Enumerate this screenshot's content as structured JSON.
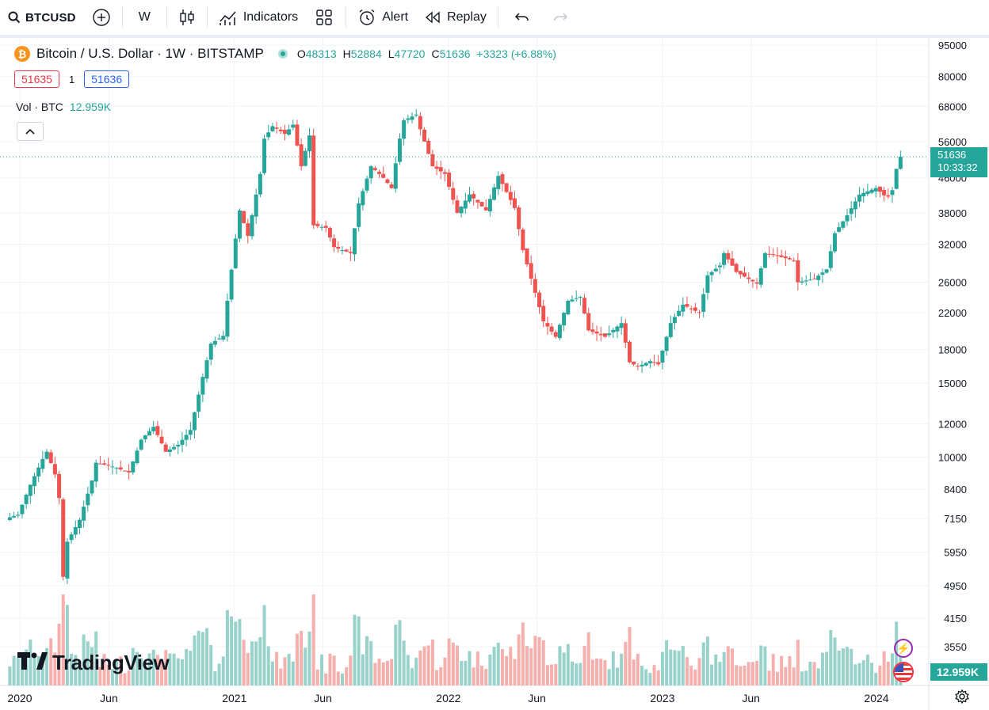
{
  "toolbar": {
    "symbol": "BTCUSD",
    "interval": "W",
    "indicators_label": "Indicators",
    "alert_label": "Alert",
    "replay_label": "Replay"
  },
  "legend": {
    "title": "Bitcoin / U.S. Dollar · 1W · BITSTAMP",
    "btc_symbol": "₿",
    "o_key": "O",
    "o_val": "48313",
    "h_key": "H",
    "h_val": "52884",
    "l_key": "L",
    "l_val": "47720",
    "c_key": "C",
    "c_val": "51636",
    "change": "+3323 (+6.88%)",
    "bid": "51635",
    "spread": "1",
    "ask": "51636",
    "vol_label": "Vol · BTC",
    "vol_value": "12.959K"
  },
  "price_tag": {
    "price": "51636",
    "countdown": "10:33:32"
  },
  "volume_tag": "12.959K",
  "brand": "TradingView",
  "colors": {
    "up": "#26a69a",
    "down": "#ef5350",
    "up_vol": "#99d2cb",
    "down_vol": "#f5b0ad",
    "grid": "#f0f3fa"
  },
  "chart_data": {
    "type": "candlestick",
    "scale": "log",
    "ylim": [
      3100,
      98000
    ],
    "y_ticks": [
      95000,
      80000,
      68000,
      56000,
      46000,
      38000,
      32000,
      26000,
      22000,
      18000,
      15000,
      12000,
      10000,
      8400,
      7150,
      5950,
      4950,
      4150,
      3550
    ],
    "x_ticks": [
      {
        "label": "2020",
        "date": "2020-01-01"
      },
      {
        "label": "Jun",
        "date": "2020-06-01"
      },
      {
        "label": "2021",
        "date": "2021-01-01"
      },
      {
        "label": "Jun",
        "date": "2021-06-01"
      },
      {
        "label": "2022",
        "date": "2022-01-01"
      },
      {
        "label": "Jun",
        "date": "2022-06-01"
      },
      {
        "label": "2023",
        "date": "2023-01-01"
      },
      {
        "label": "Jun",
        "date": "2023-06-01"
      },
      {
        "label": "2024",
        "date": "2024-01-01"
      }
    ],
    "last_price": 51636,
    "close_path": [
      [
        "2019-12-15",
        7200
      ],
      [
        "2019-12-29",
        7300
      ],
      [
        "2020-01-19",
        8600
      ],
      [
        "2020-02-09",
        9900
      ],
      [
        "2020-02-16",
        10300
      ],
      [
        "2020-03-01",
        9100
      ],
      [
        "2020-03-08",
        8000
      ],
      [
        "2020-03-15",
        5200
      ],
      [
        "2020-03-22",
        6300
      ],
      [
        "2020-04-12",
        7100
      ],
      [
        "2020-05-03",
        8800
      ],
      [
        "2020-05-10",
        9700
      ],
      [
        "2020-06-07",
        9500
      ],
      [
        "2020-07-05",
        9200
      ],
      [
        "2020-07-26",
        11000
      ],
      [
        "2020-08-16",
        11800
      ],
      [
        "2020-09-06",
        10300
      ],
      [
        "2020-09-27",
        10700
      ],
      [
        "2020-10-18",
        11600
      ],
      [
        "2020-11-08",
        15500
      ],
      [
        "2020-11-22",
        18600
      ],
      [
        "2020-12-13",
        19400
      ],
      [
        "2020-12-20",
        23500
      ],
      [
        "2021-01-03",
        33000
      ],
      [
        "2021-01-10",
        38500
      ],
      [
        "2021-01-24",
        33500
      ],
      [
        "2021-02-14",
        47000
      ],
      [
        "2021-02-21",
        57000
      ],
      [
        "2021-03-07",
        61000
      ],
      [
        "2021-03-28",
        58500
      ],
      [
        "2021-04-11",
        61500
      ],
      [
        "2021-04-25",
        49000
      ],
      [
        "2021-05-09",
        58000
      ],
      [
        "2021-05-16",
        35500
      ],
      [
        "2021-06-06",
        35000
      ],
      [
        "2021-06-20",
        31500
      ],
      [
        "2021-07-18",
        30500
      ],
      [
        "2021-08-01",
        40000
      ],
      [
        "2021-08-22",
        49000
      ],
      [
        "2021-09-12",
        46000
      ],
      [
        "2021-09-26",
        43500
      ],
      [
        "2021-10-10",
        57000
      ],
      [
        "2021-10-17",
        63000
      ],
      [
        "2021-11-07",
        65000
      ],
      [
        "2021-11-14",
        60000
      ],
      [
        "2021-12-05",
        49000
      ],
      [
        "2021-12-26",
        47000
      ],
      [
        "2022-01-16",
        38000
      ],
      [
        "2022-02-06",
        42000
      ],
      [
        "2022-03-06",
        38500
      ],
      [
        "2022-03-27",
        46500
      ],
      [
        "2022-04-24",
        39000
      ],
      [
        "2022-05-08",
        31000
      ],
      [
        "2022-06-12",
        21000
      ],
      [
        "2022-07-03",
        19300
      ],
      [
        "2022-07-24",
        23500
      ],
      [
        "2022-08-14",
        24000
      ],
      [
        "2022-08-28",
        20000
      ],
      [
        "2022-09-25",
        19300
      ],
      [
        "2022-10-23",
        20800
      ],
      [
        "2022-11-06",
        16800
      ],
      [
        "2022-11-20",
        16400
      ],
      [
        "2022-12-11",
        16900
      ],
      [
        "2022-12-25",
        16600
      ],
      [
        "2023-01-15",
        20800
      ],
      [
        "2023-02-05",
        23000
      ],
      [
        "2023-03-05",
        22000
      ],
      [
        "2023-03-19",
        27000
      ],
      [
        "2023-04-09",
        28500
      ],
      [
        "2023-04-16",
        30500
      ],
      [
        "2023-05-07",
        27500
      ],
      [
        "2023-06-11",
        25800
      ],
      [
        "2023-06-25",
        30500
      ],
      [
        "2023-07-16",
        30000
      ],
      [
        "2023-08-13",
        29300
      ],
      [
        "2023-08-20",
        26000
      ],
      [
        "2023-09-17",
        26500
      ],
      [
        "2023-10-08",
        27900
      ],
      [
        "2023-10-22",
        34000
      ],
      [
        "2023-11-12",
        37500
      ],
      [
        "2023-12-03",
        42000
      ],
      [
        "2023-12-31",
        43500
      ],
      [
        "2024-01-14",
        41800
      ],
      [
        "2024-01-21",
        41500
      ],
      [
        "2024-01-28",
        43000
      ],
      [
        "2024-02-04",
        48313
      ],
      [
        "2024-02-11",
        51636
      ]
    ]
  }
}
